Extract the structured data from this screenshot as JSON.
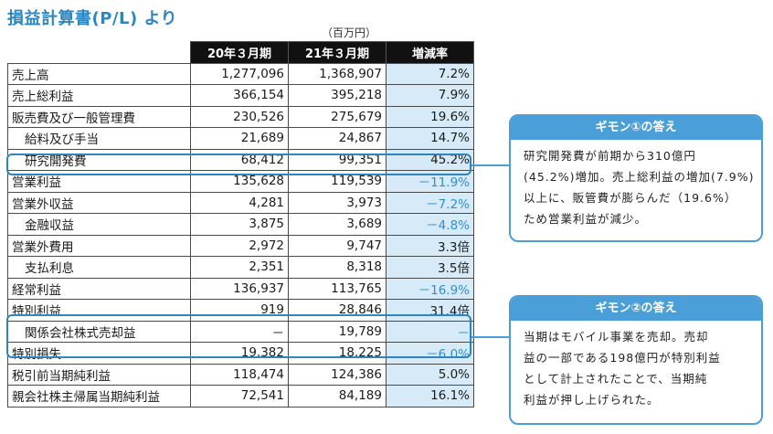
{
  "title": "損益計算書(P/L) より",
  "unit": "（百万円）",
  "table": {
    "headers": [
      "",
      "20年３月期",
      "21年３月期",
      "増減率"
    ],
    "rows": [
      {
        "label": "売上高",
        "v20": "1,277,096",
        "v21": "1,368,907",
        "rate": "7.2%",
        "indent": false,
        "negative": false
      },
      {
        "label": "売上総利益",
        "v20": "366,154",
        "v21": "395,218",
        "rate": "7.9%",
        "indent": false,
        "negative": false
      },
      {
        "label": "販売費及び一般管理費",
        "v20": "230,526",
        "v21": "275,679",
        "rate": "19.6%",
        "indent": false,
        "negative": false
      },
      {
        "label": "給料及び手当",
        "v20": "21,689",
        "v21": "24,867",
        "rate": "14.7%",
        "indent": true,
        "negative": false
      },
      {
        "label": "研究開発費",
        "v20": "68,412",
        "v21": "99,351",
        "rate": "45.2%",
        "indent": true,
        "negative": false
      },
      {
        "label": "営業利益",
        "v20": "135,628",
        "v21": "119,539",
        "rate": "－11.9%",
        "indent": false,
        "negative": true
      },
      {
        "label": "営業外収益",
        "v20": "4,281",
        "v21": "3,973",
        "rate": "－7.2%",
        "indent": false,
        "negative": true
      },
      {
        "label": "金融収益",
        "v20": "3,875",
        "v21": "3,689",
        "rate": "－4.8%",
        "indent": true,
        "negative": true
      },
      {
        "label": "営業外費用",
        "v20": "2,972",
        "v21": "9,747",
        "rate": "3.3倍",
        "indent": false,
        "negative": false
      },
      {
        "label": "支払利息",
        "v20": "2,351",
        "v21": "8,318",
        "rate": "3.5倍",
        "indent": true,
        "negative": false
      },
      {
        "label": "経常利益",
        "v20": "136,937",
        "v21": "113,765",
        "rate": "－16.9%",
        "indent": false,
        "negative": true
      },
      {
        "label": "特別利益",
        "v20": "919",
        "v21": "28,846",
        "rate": "31.4倍",
        "indent": false,
        "negative": false
      },
      {
        "label": "関係会社株式売却益",
        "v20": "－",
        "v21": "19,789",
        "rate": "－",
        "indent": true,
        "negative": true
      },
      {
        "label": "特別損失",
        "v20": "19,382",
        "v21": "18,225",
        "rate": "－6.0%",
        "indent": false,
        "negative": true
      },
      {
        "label": "税引前当期純利益",
        "v20": "118,474",
        "v21": "124,386",
        "rate": "5.0%",
        "indent": false,
        "negative": false
      },
      {
        "label": "親会社株主帰属当期純利益",
        "v20": "72,541",
        "v21": "84,189",
        "rate": "16.1%",
        "indent": false,
        "negative": false
      }
    ]
  },
  "callouts": [
    {
      "title": "ギモン①の答え",
      "lines": [
        "研究開発費が前期から310億円",
        "(45.2%)増加。売上総利益の増加(7.9%)",
        "以上に、販管費が膨らんだ（19.6%）",
        "ため営業利益が減少。"
      ]
    },
    {
      "title": "ギモン②の答え",
      "lines": [
        "当期はモバイル事業を売却。売却",
        "益の一部である198億円が特別利益",
        "として計上されたことで、当期純",
        "利益が押し上げられた。"
      ]
    }
  ],
  "colors": {
    "accent": "#2e86c1",
    "callout": "#4a9fd8",
    "rate_bg": "#d6ebf7",
    "negative": "#2f8fd1"
  }
}
